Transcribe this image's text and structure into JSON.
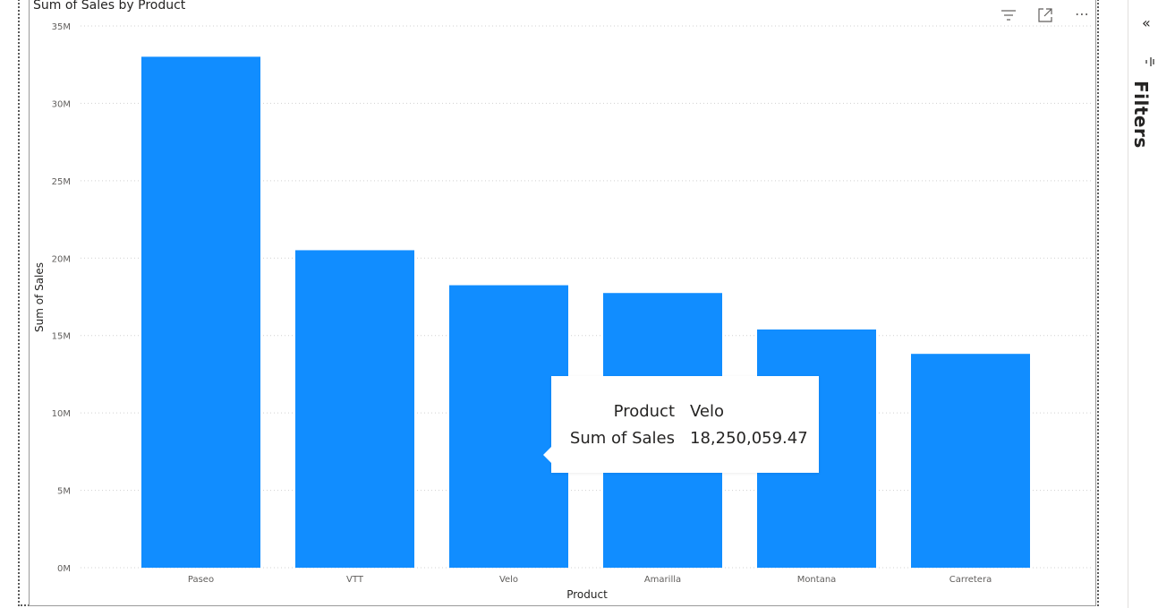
{
  "visual": {
    "title": "Sum of Sales by Product",
    "header_icons": [
      "filter-icon",
      "focus-mode-icon",
      "more-options-icon"
    ],
    "more_options_text": "⋯"
  },
  "chart_data": {
    "type": "bar",
    "title": "Sum of Sales by Product",
    "xlabel": "Product",
    "ylabel": "Sum of Sales",
    "categories": [
      "Paseo",
      "VTT",
      "Velo",
      "Amarilla",
      "Montana",
      "Carretera"
    ],
    "values": [
      33011143.96,
      20511921.02,
      18250059.47,
      17747116.07,
      15390801.88,
      13815307.89
    ],
    "ylim": [
      0,
      35000000
    ],
    "yticks": [
      0,
      5000000,
      10000000,
      15000000,
      20000000,
      25000000,
      30000000,
      35000000
    ],
    "ytick_labels": [
      "0M",
      "5M",
      "10M",
      "15M",
      "20M",
      "25M",
      "30M",
      "35M"
    ],
    "grid": true,
    "bar_color": "#118DFF"
  },
  "tooltip": {
    "rows": [
      {
        "key": "Product",
        "value": "Velo"
      },
      {
        "key": "Sum of Sales",
        "value": "18,250,059.47"
      }
    ]
  },
  "filter_pane": {
    "label": "Filters",
    "collapse_glyph": "«"
  }
}
